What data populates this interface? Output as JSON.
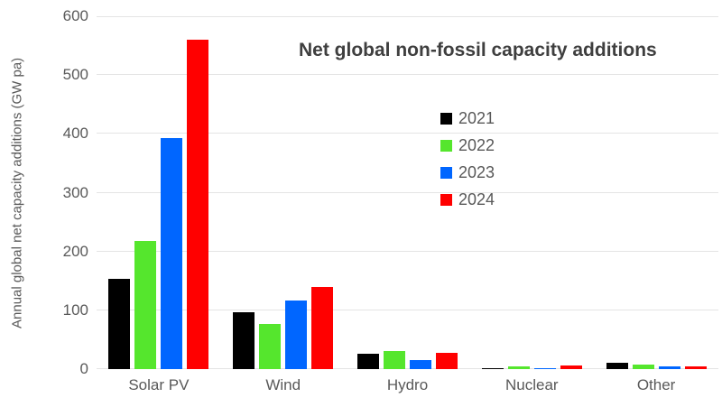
{
  "chart_data": {
    "type": "bar",
    "title": "Net global non-fossil capacity additions",
    "xlabel": "",
    "ylabel": "Annual global net capacity additions (GW pa)",
    "ylim": [
      0,
      600
    ],
    "yticks": [
      0,
      100,
      200,
      300,
      400,
      500,
      600
    ],
    "grid": true,
    "legend_position": "upper-middle-right",
    "categories": [
      "Solar PV",
      "Wind",
      "Hydro",
      "Nuclear",
      "Other"
    ],
    "series": [
      {
        "name": "2021",
        "color": "#000000",
        "values": [
          153,
          97,
          26,
          1,
          11
        ]
      },
      {
        "name": "2022",
        "color": "#55e62d",
        "values": [
          218,
          76,
          30,
          5,
          8
        ]
      },
      {
        "name": "2023",
        "color": "#0066ff",
        "values": [
          393,
          116,
          15,
          1,
          4
        ]
      },
      {
        "name": "2024",
        "color": "#ff0000",
        "values": [
          560,
          140,
          28,
          6,
          5
        ]
      }
    ]
  },
  "y_axis": {
    "tick_labels_bottom_up": [
      "0",
      "100",
      "200",
      "300",
      "400",
      "500",
      "600"
    ]
  },
  "colors": {
    "background": "#ffffff",
    "gridline": "#e4e4e4",
    "axis_text": "#595959",
    "title_text": "#3f3f3f"
  }
}
